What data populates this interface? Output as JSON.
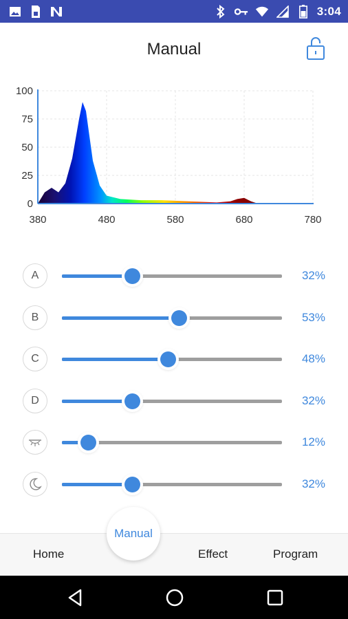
{
  "status_bar": {
    "time": "3:04",
    "left_icons": [
      "image-icon",
      "sim-card-icon",
      "n-logo-icon"
    ],
    "right_icons": [
      "bluetooth-icon",
      "key-icon",
      "wifi-icon",
      "signal-icon",
      "battery-icon"
    ],
    "background": "#3a4bb0"
  },
  "header": {
    "title": "Manual",
    "lock_icon": "unlock-icon"
  },
  "chart_data": {
    "type": "area",
    "x_ticks": [
      "380",
      "480",
      "580",
      "680",
      "780"
    ],
    "y_ticks": [
      "100",
      "75",
      "50",
      "25",
      "0"
    ],
    "xlim": [
      380,
      780
    ],
    "ylim": [
      0,
      100
    ],
    "grid": true,
    "x": [
      380,
      390,
      400,
      410,
      420,
      430,
      440,
      445,
      450,
      455,
      460,
      470,
      480,
      500,
      530,
      560,
      600,
      640,
      660,
      670,
      680,
      690,
      700,
      740,
      780
    ],
    "y": [
      0,
      10,
      14,
      10,
      18,
      40,
      75,
      90,
      82,
      60,
      38,
      16,
      7,
      4,
      3,
      3,
      2,
      1,
      2,
      4,
      5,
      2,
      0,
      0,
      0
    ]
  },
  "channels": [
    {
      "label": "A",
      "icon": null,
      "value": 32,
      "percent_text": "32%"
    },
    {
      "label": "B",
      "icon": null,
      "value": 53,
      "percent_text": "53%"
    },
    {
      "label": "C",
      "icon": null,
      "value": 48,
      "percent_text": "48%"
    },
    {
      "label": "D",
      "icon": null,
      "value": 32,
      "percent_text": "32%"
    },
    {
      "label": "",
      "icon": "sunrise-icon",
      "value": 12,
      "percent_text": "12%"
    },
    {
      "label": "",
      "icon": "moon-icon",
      "value": 32,
      "percent_text": "32%"
    }
  ],
  "nav": {
    "home": "Home",
    "manual": "Manual",
    "effect": "Effect",
    "program": "Program"
  },
  "colors": {
    "accent": "#3f88dd",
    "track": "#9e9e9e"
  },
  "system_nav": [
    "back-icon",
    "home-circle-icon",
    "recents-icon"
  ]
}
